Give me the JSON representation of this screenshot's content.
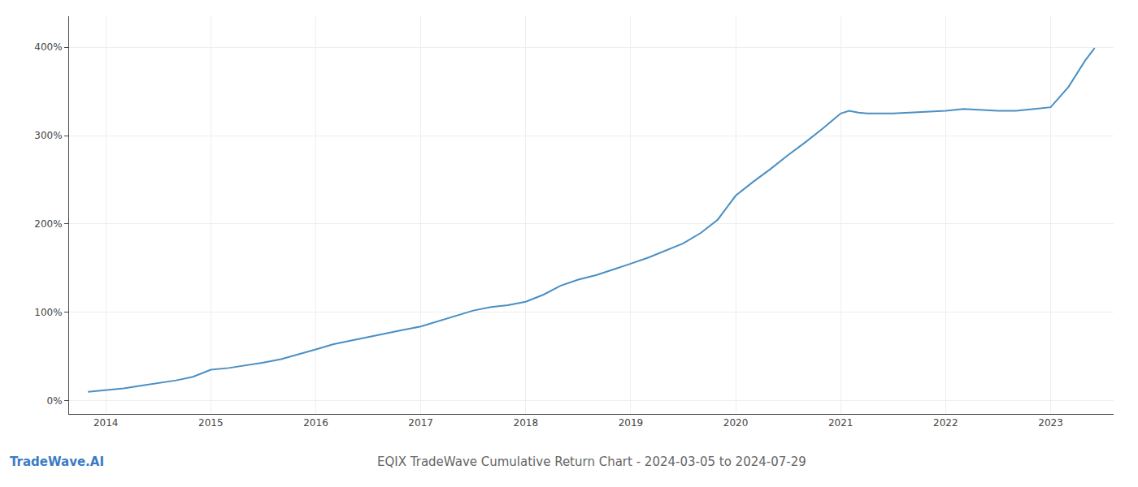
{
  "chart_data": {
    "type": "line",
    "title": "EQIX TradeWave Cumulative Return Chart - 2024-03-05 to 2024-07-29",
    "annotations": [
      "TradeWave.AI"
    ],
    "x": [
      2013.83,
      2014.0,
      2014.17,
      2014.33,
      2014.5,
      2014.67,
      2014.83,
      2015.0,
      2015.17,
      2015.33,
      2015.5,
      2015.67,
      2015.83,
      2016.0,
      2016.17,
      2016.33,
      2016.5,
      2016.67,
      2016.83,
      2017.0,
      2017.17,
      2017.33,
      2017.5,
      2017.67,
      2017.83,
      2018.0,
      2018.17,
      2018.33,
      2018.5,
      2018.67,
      2018.83,
      2019.0,
      2019.17,
      2019.33,
      2019.5,
      2019.67,
      2019.83,
      2020.0,
      2020.17,
      2020.33,
      2020.5,
      2020.67,
      2020.83,
      2021.0,
      2021.08,
      2021.17,
      2021.25,
      2021.5,
      2021.67,
      2021.83,
      2022.0,
      2022.17,
      2022.33,
      2022.5,
      2022.67,
      2022.83,
      2023.0,
      2023.17,
      2023.33,
      2023.42
    ],
    "values": [
      10,
      12,
      14,
      17,
      20,
      23,
      27,
      35,
      37,
      40,
      43,
      47,
      52,
      58,
      64,
      68,
      72,
      76,
      80,
      84,
      90,
      96,
      102,
      106,
      108,
      112,
      120,
      130,
      137,
      142,
      148,
      155,
      162,
      170,
      178,
      190,
      205,
      232,
      248,
      262,
      278,
      293,
      308,
      325,
      328,
      326,
      325,
      325,
      326,
      327,
      328,
      330,
      329,
      328,
      328,
      330,
      332,
      355,
      385,
      399
    ],
    "color": "#4a8fc4",
    "xlim": [
      2013.65,
      2023.6
    ],
    "ylim": [
      -15,
      435
    ],
    "xticks": [
      2014,
      2015,
      2016,
      2017,
      2018,
      2019,
      2020,
      2021,
      2022,
      2023
    ],
    "yticks": [
      {
        "value": 0,
        "label": "0%"
      },
      {
        "value": 100,
        "label": "100%"
      },
      {
        "value": 200,
        "label": "200%"
      },
      {
        "value": 300,
        "label": "300%"
      },
      {
        "value": 400,
        "label": "400%"
      }
    ],
    "grid": true
  }
}
